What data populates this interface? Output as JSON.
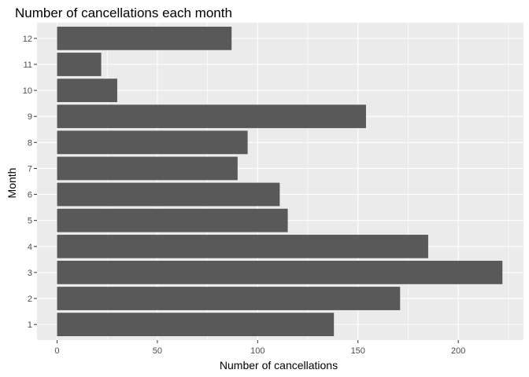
{
  "chart_data": {
    "type": "bar",
    "orientation": "horizontal",
    "title": "Number of cancellations each month",
    "xlabel": "Number of cancellations",
    "ylabel": "Month",
    "categories": [
      "1",
      "2",
      "3",
      "4",
      "5",
      "6",
      "7",
      "8",
      "9",
      "10",
      "11",
      "12"
    ],
    "values": [
      138,
      171,
      222,
      185,
      115,
      111,
      90,
      95,
      154,
      30,
      22,
      87
    ],
    "xlim": [
      -10,
      232.5
    ],
    "x_ticks": [
      0,
      50,
      100,
      150,
      200
    ],
    "grid": true,
    "colors": {
      "bar": "#595959",
      "panel": "#ebebeb",
      "grid": "#ffffff"
    }
  }
}
